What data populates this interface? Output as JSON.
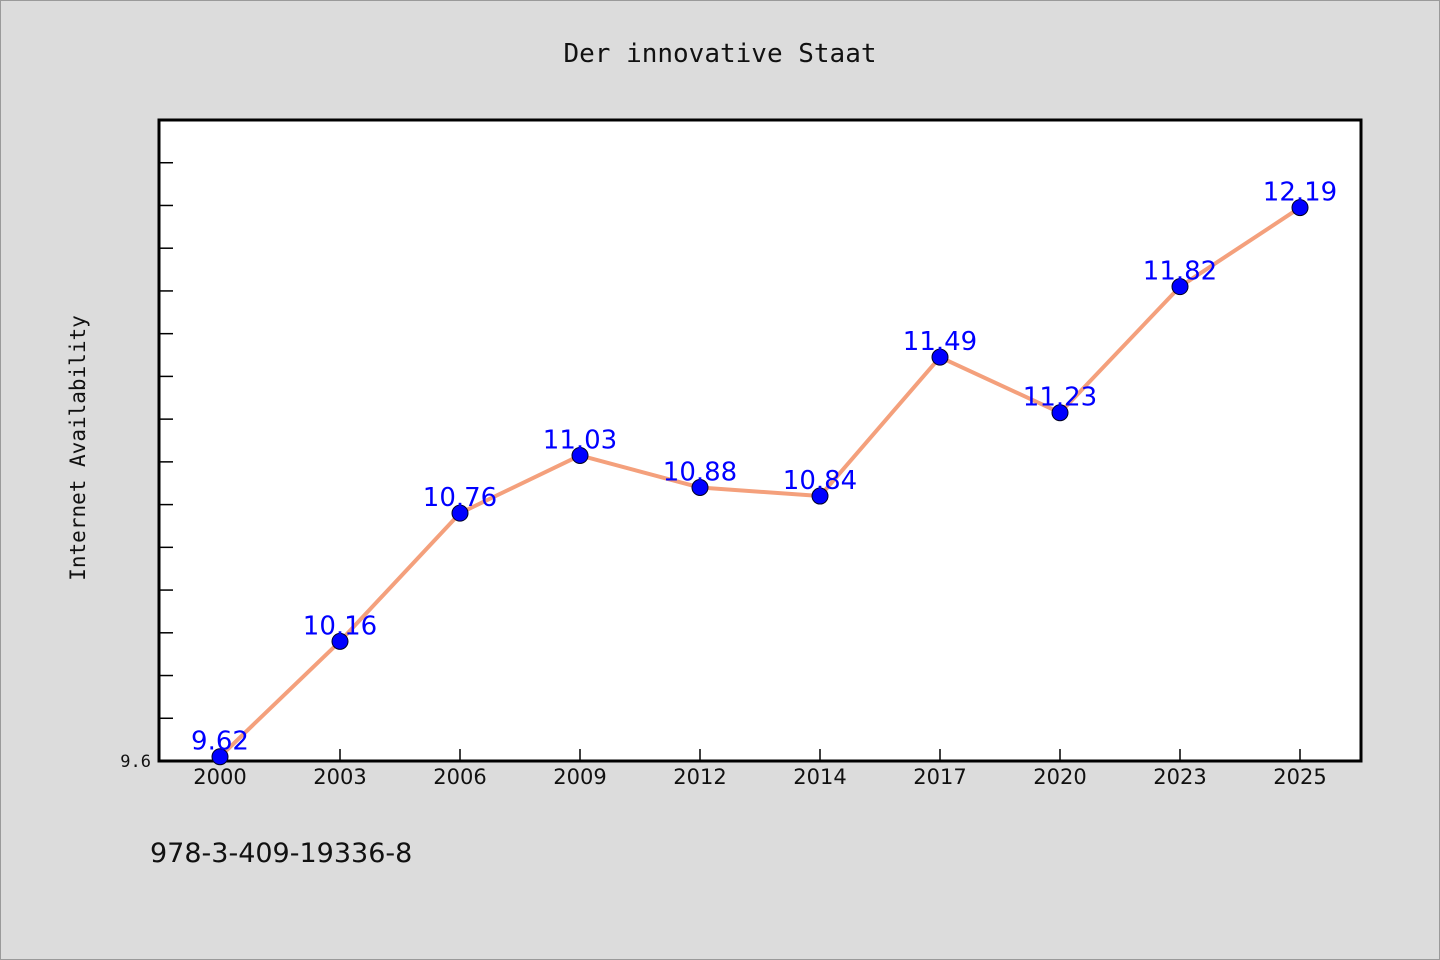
{
  "chart_data": {
    "type": "line",
    "title": "Der innovative Staat",
    "xlabel": "",
    "ylabel": "Internet Availability",
    "categories": [
      "2000",
      "2003",
      "2006",
      "2009",
      "2012",
      "2014",
      "2017",
      "2020",
      "2023",
      "2025"
    ],
    "series": [
      {
        "values": [
          9.62,
          10.16,
          10.76,
          11.03,
          10.88,
          10.84,
          11.49,
          11.23,
          11.82,
          12.19
        ]
      }
    ],
    "data_labels": [
      "9.62",
      "10.16",
      "10.76",
      "11.03",
      "10.88",
      "10.84",
      "11.49",
      "11.23",
      "11.82",
      "12.19"
    ],
    "ylim": [
      9.6,
      12.6
    ],
    "y_tick_labels": [
      {
        "value": 9.6,
        "label": "9.6"
      }
    ],
    "y_minor_step": 0.2,
    "grid": false,
    "colors": {
      "line": "#f4a07c",
      "marker": "#0000ff",
      "data_label": "#0000ff",
      "background": "#dcdcdc",
      "plot_background": "#ffffff"
    }
  },
  "footer": {
    "text": "978-3-409-19336-8"
  }
}
